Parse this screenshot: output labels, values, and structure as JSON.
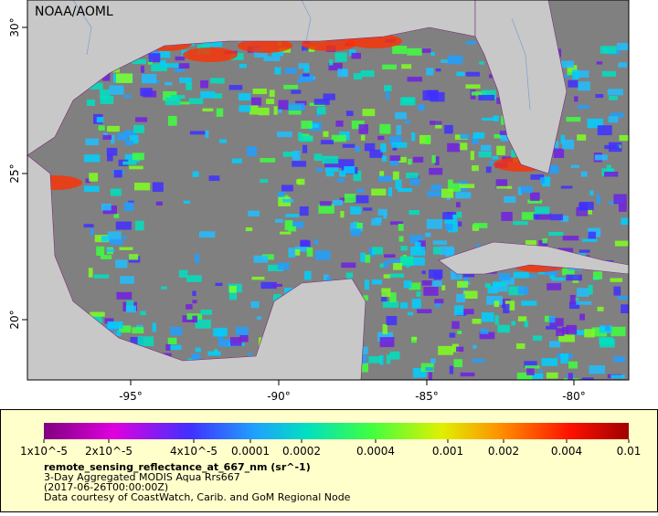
{
  "map": {
    "credit": "NOAA/AOML",
    "lat_labels": [
      "30°",
      "25°",
      "20°"
    ],
    "lon_labels": [
      "-95°",
      "-90°",
      "-85°",
      "-80°"
    ]
  },
  "legend": {
    "color_labels": [
      "1x10^-5",
      "2x10^-5",
      "4x10^-5",
      "0.0001",
      "0.0002",
      "0.0004",
      "0.001",
      "0.002",
      "0.004",
      "0.01"
    ],
    "variable": "remote_sensing_reflectance_at_667_nm (sr^-1)",
    "lines": [
      "3-Day Aggregated MODIS Aqua Rrs667",
      "(2017-06-26T00:00:00Z)",
      "Data courtesy of CoastWatch, Carib. and GoM Regional Node"
    ]
  }
}
